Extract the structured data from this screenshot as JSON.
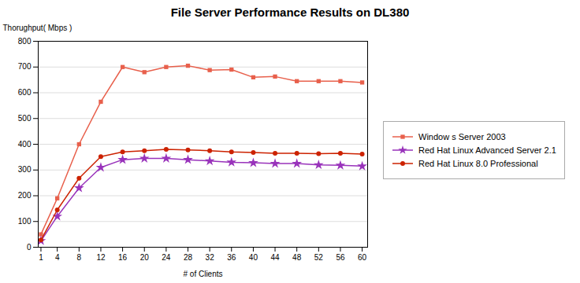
{
  "chart_data": {
    "type": "line",
    "title": "File Server Performance Results on DL380",
    "xlabel": "# of Clients",
    "ylabel": "Thorughput( Mbps )",
    "x": [
      1,
      4,
      8,
      12,
      16,
      20,
      24,
      28,
      32,
      36,
      40,
      44,
      48,
      52,
      56,
      60
    ],
    "series": [
      {
        "name": "Window s Server 2003",
        "color": "#E8604C",
        "marker": "square",
        "values": [
          50,
          190,
          400,
          565,
          700,
          680,
          700,
          705,
          688,
          690,
          660,
          663,
          645,
          645,
          645,
          640
        ]
      },
      {
        "name": "Red Hat Linux Advanced Server 2.1",
        "color": "#9933BB",
        "marker": "star",
        "values": [
          25,
          120,
          230,
          310,
          340,
          345,
          345,
          340,
          335,
          330,
          328,
          325,
          325,
          320,
          318,
          315
        ]
      },
      {
        "name": "Red Hat Linux 8.0 Professional",
        "color": "#CC2200",
        "marker": "circle",
        "values": [
          28,
          145,
          268,
          352,
          370,
          375,
          380,
          378,
          375,
          370,
          368,
          365,
          365,
          363,
          365,
          362
        ]
      }
    ],
    "xlim": [
      0.5,
      61
    ],
    "xticks": [
      1,
      4,
      8,
      12,
      16,
      20,
      24,
      28,
      32,
      36,
      40,
      44,
      48,
      52,
      56,
      60
    ],
    "ylim": [
      0,
      800
    ],
    "yticks": [
      0,
      100,
      200,
      300,
      400,
      500,
      600,
      700,
      800
    ],
    "grid": true,
    "legend": "right"
  }
}
